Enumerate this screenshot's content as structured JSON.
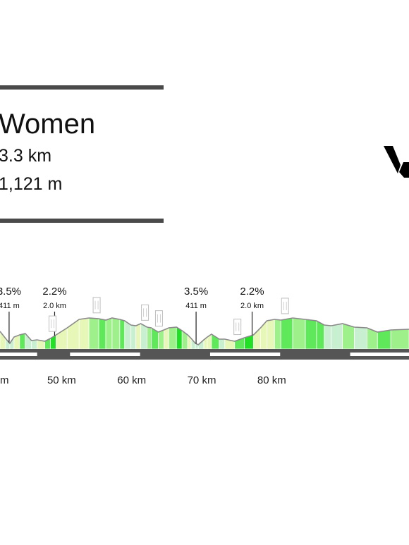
{
  "race": {
    "title": "Women",
    "distance": "3.3 km",
    "elevation": "1,121 m"
  },
  "colors": {
    "rule": "#4a4a4a",
    "road": "#555555",
    "road_highlight": "#ffffff",
    "grade_0": "#c8f0d0",
    "grade_1": "#e6f7b8",
    "grade_2": "#9ef08a",
    "grade_3": "#5ee85a",
    "grade_4": "#22e026"
  },
  "chart_data": {
    "type": "area",
    "x_unit": "km",
    "xlim": [
      41.2,
      99.6
    ],
    "ylim": [
      0,
      70
    ],
    "tick_labels": [
      {
        "km": 50,
        "label": "50 km"
      },
      {
        "km": 60,
        "label": "60 km"
      },
      {
        "km": 70,
        "label": "70 km"
      },
      {
        "km": 80,
        "label": "80 km"
      }
    ],
    "partial_tick_label": {
      "km": 40,
      "label": "m"
    },
    "road_highlights": [
      [
        41.2,
        46.5
      ],
      [
        51.2,
        61.2
      ],
      [
        71.2,
        81.2
      ],
      [
        91.2,
        99.6
      ]
    ],
    "profile": {
      "km": [
        41.2,
        42.0,
        42.6,
        43.2,
        44.0,
        44.8,
        45.7,
        46.5,
        47.6,
        48.4,
        49.2,
        50.8,
        52.5,
        53.9,
        55.3,
        56.3,
        57.2,
        58.3,
        59.0,
        59.9,
        60.6,
        61.3,
        62.2,
        62.8,
        63.8,
        64.6,
        65.3,
        66.4,
        67.2,
        68.0,
        68.5,
        69.1,
        69.5,
        70.3,
        70.8,
        71.4,
        72.5,
        73.3,
        74.7,
        76.1,
        77.4,
        78.4,
        79.3,
        80.4,
        81.3,
        83.0,
        84.8,
        86.4,
        87.5,
        88.5,
        90.1,
        91.8,
        93.6,
        95.1,
        97.0,
        99.6
      ],
      "ele": [
        25,
        15,
        8,
        17,
        20,
        22,
        12,
        13,
        11,
        15,
        20,
        30,
        42,
        44,
        43,
        41,
        44,
        42,
        40,
        34,
        33,
        36,
        31,
        30,
        24,
        27,
        30,
        31,
        26,
        20,
        15,
        8,
        6,
        13,
        17,
        21,
        14,
        14,
        11,
        16,
        20,
        30,
        40,
        42,
        41,
        44,
        42,
        40,
        34,
        33,
        36,
        31,
        30,
        24,
        27,
        28
      ],
      "grade": [
        1,
        0,
        0,
        1,
        3,
        0,
        0,
        1,
        3,
        4,
        1,
        1,
        1,
        2,
        3,
        2,
        2,
        3,
        0,
        0,
        1,
        0,
        2,
        3,
        2,
        1,
        2,
        4,
        2,
        1,
        0,
        0,
        0,
        1,
        1,
        3,
        0,
        1,
        3,
        4,
        1,
        1,
        1,
        2,
        3,
        2,
        3,
        3,
        0,
        0,
        2,
        0,
        2,
        3,
        2
      ]
    },
    "climbs": [
      {
        "km": 42.5,
        "percent": "3.5%",
        "value": "411 m"
      },
      {
        "km": 49.0,
        "percent": "2.2%",
        "value": "2.0 km"
      },
      {
        "km": 69.2,
        "percent": "3.5%",
        "value": "411 m"
      },
      {
        "km": 77.2,
        "percent": "2.2%",
        "value": "2.0 km"
      }
    ],
    "markers": [
      {
        "km": 48.7,
        "icon": "sprint-marker-icon"
      },
      {
        "km": 55.0,
        "icon": "km-marker-icon"
      },
      {
        "km": 61.9,
        "icon": "sprint-marker-icon"
      },
      {
        "km": 63.9,
        "icon": "sprint-marker-icon"
      },
      {
        "km": 75.1,
        "icon": "sprint-marker-icon"
      },
      {
        "km": 81.9,
        "icon": "km-marker-icon"
      }
    ]
  }
}
